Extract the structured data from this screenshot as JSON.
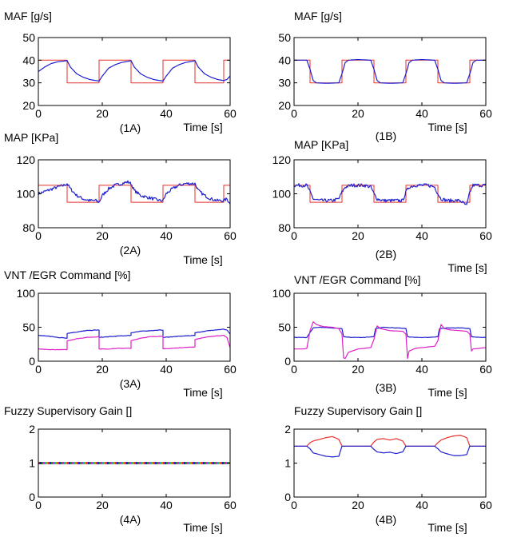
{
  "figure": {
    "panels": [
      {
        "id": "1A",
        "title": "MAF [g/s]",
        "label": "(1A)",
        "xlabel": "Time [s]"
      },
      {
        "id": "1B",
        "title": "MAF [g/s]",
        "label": "(1B)",
        "xlabel": "Time [s]"
      },
      {
        "id": "2A",
        "title": "MAP [KPa]",
        "label": "(2A)",
        "xlabel": "Time [s]"
      },
      {
        "id": "2B",
        "title": "MAP [KPa]",
        "label": "(2B)",
        "xlabel": "Time [s]"
      },
      {
        "id": "3A",
        "title": "VNT /EGR Command [%]",
        "label": "(3A)",
        "xlabel": "Time [s]"
      },
      {
        "id": "3B",
        "title": "VNT /EGR Command [%]",
        "label": "(3B)",
        "xlabel": "Time [s]"
      },
      {
        "id": "4A",
        "title": "Fuzzy Supervisory Gain []",
        "label": "(4A)",
        "xlabel": "Time [s]"
      },
      {
        "id": "4B",
        "title": "Fuzzy Supervisory Gain []",
        "label": "(4B)",
        "xlabel": "Time [s]"
      }
    ]
  },
  "colors": {
    "blue": "#1f1fcf",
    "red": "#e8302c",
    "magenta": "#e020c8",
    "axis": "#000000"
  },
  "chart_data": [
    {
      "id": "1A",
      "type": "line",
      "title": "MAF [g/s]",
      "xlabel": "Time [s]",
      "ylabel": "",
      "xlim": [
        0,
        60
      ],
      "ylim": [
        20,
        50
      ],
      "xticks": [
        0,
        20,
        40,
        60
      ],
      "yticks": [
        20,
        30,
        40,
        50
      ],
      "series": [
        {
          "color": "red",
          "step": true,
          "x": [
            0,
            9,
            9,
            19,
            19,
            29,
            29,
            39,
            39,
            49,
            49,
            58,
            58,
            60
          ],
          "y": [
            40,
            40,
            30,
            30,
            40,
            40,
            30,
            30,
            40,
            40,
            30,
            30,
            40,
            40
          ]
        },
        {
          "color": "blue",
          "x": [
            0,
            2,
            4,
            6,
            9,
            10,
            12,
            14,
            16,
            18,
            19,
            20,
            22,
            24,
            26,
            28,
            29,
            30,
            32,
            34,
            36,
            38,
            39,
            40,
            42,
            44,
            46,
            48,
            49,
            50,
            52,
            54,
            56,
            58,
            59,
            60
          ],
          "y": [
            35,
            37,
            38.5,
            39.3,
            39.8,
            37,
            34,
            32.5,
            31.5,
            31,
            30.8,
            33,
            36.5,
            38,
            39,
            39.5,
            39.8,
            37,
            34,
            32.5,
            31.5,
            31,
            30.8,
            33,
            36.5,
            38,
            39,
            39.5,
            39.8,
            37,
            34,
            32.5,
            31.5,
            31,
            31.5,
            33
          ]
        }
      ]
    },
    {
      "id": "1B",
      "type": "line",
      "title": "MAF [g/s]",
      "xlabel": "Time [s]",
      "ylabel": "",
      "xlim": [
        0,
        60
      ],
      "ylim": [
        20,
        50
      ],
      "xticks": [
        0,
        20,
        40,
        60
      ],
      "yticks": [
        20,
        30,
        40,
        50
      ],
      "series": [
        {
          "color": "red",
          "step": true,
          "x": [
            0,
            5,
            5,
            15,
            15,
            25,
            25,
            35,
            35,
            45,
            45,
            55,
            55,
            60
          ],
          "y": [
            40,
            40,
            30,
            30,
            40,
            40,
            30,
            30,
            40,
            40,
            30,
            30,
            40,
            40
          ]
        },
        {
          "color": "blue",
          "x": [
            0,
            4,
            5,
            6,
            7,
            10,
            14,
            15,
            16,
            17,
            20,
            24,
            25,
            26,
            27,
            30,
            34,
            35,
            36,
            37,
            40,
            44,
            45,
            46,
            47,
            50,
            54,
            55,
            56,
            57,
            60
          ],
          "y": [
            40,
            40,
            36,
            31,
            30,
            29.8,
            30,
            34,
            39,
            40,
            40.3,
            40,
            36,
            31,
            30,
            29.8,
            30,
            34,
            39,
            40,
            40.3,
            40,
            36,
            31,
            30,
            29.8,
            30,
            34,
            39,
            40,
            40
          ]
        }
      ]
    },
    {
      "id": "2A",
      "type": "line",
      "title": "MAP [KPa]",
      "xlabel": "Time [s]",
      "ylabel": "",
      "xlim": [
        0,
        60
      ],
      "ylim": [
        80,
        120
      ],
      "xticks": [
        0,
        20,
        40,
        60
      ],
      "yticks": [
        80,
        100,
        120
      ],
      "series": [
        {
          "color": "red",
          "step": true,
          "x": [
            0,
            9,
            9,
            19,
            19,
            29,
            29,
            39,
            39,
            49,
            49,
            58,
            58,
            60
          ],
          "y": [
            105,
            105,
            95,
            95,
            105,
            105,
            95,
            95,
            105,
            105,
            95,
            95,
            105,
            105
          ]
        },
        {
          "color": "blue",
          "noise": 0.9,
          "x": [
            0,
            3,
            6,
            8,
            9,
            10,
            12,
            14,
            16,
            18,
            19,
            20,
            22,
            24,
            26,
            28,
            29,
            30,
            32,
            34,
            36,
            38,
            39,
            40,
            42,
            44,
            46,
            48,
            49,
            50,
            52,
            54,
            56,
            58,
            59,
            60
          ],
          "y": [
            100,
            102,
            104,
            105,
            106,
            103,
            99,
            97,
            96,
            96,
            95,
            99,
            103,
            105,
            106,
            107,
            106,
            102,
            99,
            98,
            97,
            96,
            96,
            100,
            103,
            105,
            106,
            106,
            106,
            102,
            99,
            97,
            96,
            96,
            97,
            94
          ]
        }
      ]
    },
    {
      "id": "2B",
      "type": "line",
      "title": "MAP [KPa]",
      "xlabel": "Time [s]",
      "ylabel": "",
      "xlim": [
        0,
        60
      ],
      "ylim": [
        80,
        120
      ],
      "xticks": [
        0,
        20,
        40,
        60
      ],
      "yticks": [
        80,
        100,
        120
      ],
      "series": [
        {
          "color": "red",
          "step": true,
          "x": [
            0,
            5,
            5,
            15,
            15,
            25,
            25,
            35,
            35,
            45,
            45,
            55,
            55,
            60
          ],
          "y": [
            105,
            105,
            95,
            95,
            105,
            105,
            95,
            95,
            105,
            105,
            95,
            95,
            105,
            105
          ]
        },
        {
          "color": "blue",
          "noise": 1.0,
          "x": [
            0,
            4,
            5,
            6,
            8,
            12,
            14,
            15,
            16,
            18,
            22,
            24,
            25,
            26,
            28,
            32,
            34,
            35,
            36,
            38,
            42,
            44,
            45,
            46,
            48,
            52,
            54,
            55,
            56,
            58,
            60
          ],
          "y": [
            105,
            105,
            101,
            97,
            96,
            96,
            97,
            101,
            104,
            105,
            105,
            104,
            100,
            97,
            96,
            96,
            96,
            101,
            104,
            105,
            105,
            104,
            100,
            97,
            96,
            96,
            93,
            101,
            105,
            105,
            105
          ]
        }
      ]
    },
    {
      "id": "3A",
      "type": "line",
      "title": "VNT /EGR Command [%]",
      "xlabel": "Time [s]",
      "ylabel": "",
      "xlim": [
        0,
        60
      ],
      "ylim": [
        0,
        100
      ],
      "xticks": [
        0,
        20,
        40,
        60
      ],
      "yticks": [
        0,
        50,
        100
      ],
      "series": [
        {
          "color": "blue",
          "noise": 0.4,
          "x": [
            0,
            3,
            6,
            9,
            9,
            12,
            15,
            19,
            19,
            22,
            25,
            29,
            29,
            32,
            35,
            39,
            39,
            42,
            45,
            49,
            49,
            52,
            55,
            58,
            59,
            60
          ],
          "y": [
            38,
            37,
            35,
            34,
            41,
            43,
            45,
            46,
            35,
            36,
            37,
            38,
            42,
            44,
            45,
            46,
            35,
            36,
            37,
            38,
            42,
            44,
            46,
            47,
            46,
            40
          ]
        },
        {
          "color": "magenta",
          "noise": 0.3,
          "x": [
            0,
            3,
            6,
            9,
            9,
            12,
            15,
            19,
            19,
            22,
            25,
            29,
            29,
            32,
            35,
            39,
            39,
            42,
            45,
            49,
            49,
            52,
            55,
            58,
            59,
            60
          ],
          "y": [
            18,
            17,
            17,
            17,
            30,
            33,
            35,
            36,
            18,
            18,
            19,
            19,
            30,
            34,
            36,
            37,
            18,
            19,
            20,
            21,
            32,
            35,
            37,
            38,
            35,
            20
          ]
        }
      ]
    },
    {
      "id": "3B",
      "type": "line",
      "title": "VNT /EGR Command [%]",
      "xlabel": "Time [s]",
      "ylabel": "",
      "xlim": [
        0,
        60
      ],
      "ylim": [
        0,
        100
      ],
      "xticks": [
        0,
        20,
        40,
        60
      ],
      "yticks": [
        0,
        50,
        100
      ],
      "series": [
        {
          "color": "blue",
          "noise": 0.3,
          "x": [
            0,
            4,
            5,
            6,
            8,
            12,
            15,
            15.5,
            18,
            22,
            25,
            25.5,
            28,
            32,
            35,
            35.5,
            38,
            42,
            45,
            45.5,
            48,
            52,
            55,
            55.5,
            58,
            60
          ],
          "y": [
            35,
            35,
            42,
            49,
            50,
            49,
            48,
            36,
            35,
            35,
            36,
            48,
            50,
            49,
            48,
            36,
            35,
            35,
            36,
            48,
            49,
            49,
            48,
            36,
            35,
            35
          ]
        },
        {
          "color": "magenta",
          "x": [
            0,
            3,
            4,
            5,
            6,
            7,
            9,
            12,
            14,
            15,
            15.5,
            16,
            17,
            20,
            24,
            25,
            26,
            27,
            28,
            30,
            34,
            35,
            35.5,
            36,
            38,
            40,
            44,
            45,
            46,
            47,
            49,
            52,
            54,
            55,
            55.5,
            56,
            58,
            60
          ],
          "y": [
            18,
            18,
            19,
            45,
            58,
            54,
            51,
            50,
            48,
            40,
            5,
            4,
            13,
            18,
            20,
            32,
            52,
            48,
            47,
            45,
            44,
            40,
            4,
            15,
            19,
            20,
            22,
            30,
            54,
            48,
            46,
            45,
            44,
            40,
            15,
            18,
            19,
            20
          ]
        }
      ]
    },
    {
      "id": "4A",
      "type": "line",
      "title": "Fuzzy Supervisory Gain []",
      "xlabel": "Time [s]",
      "ylabel": "",
      "xlim": [
        0,
        60
      ],
      "ylim": [
        0,
        2
      ],
      "xticks": [
        0,
        20,
        40,
        60
      ],
      "yticks": [
        0,
        1,
        2
      ],
      "series": [
        {
          "color": "multicolor-dashed",
          "x": [
            0,
            60
          ],
          "y": [
            1,
            1
          ]
        }
      ]
    },
    {
      "id": "4B",
      "type": "line",
      "title": "Fuzzy Supervisory Gain []",
      "xlabel": "Time [s]",
      "ylabel": "",
      "xlim": [
        0,
        60
      ],
      "ylim": [
        0,
        2
      ],
      "xticks": [
        0,
        20,
        40,
        60
      ],
      "yticks": [
        0,
        1,
        2
      ],
      "series": [
        {
          "color": "red",
          "x": [
            0,
            4,
            5,
            6,
            8,
            10,
            12,
            14,
            15,
            16,
            24,
            25,
            26,
            28,
            30,
            32,
            34,
            35,
            36,
            44,
            45,
            46,
            48,
            50,
            52,
            54,
            55,
            56,
            60
          ],
          "y": [
            1.5,
            1.5,
            1.6,
            1.65,
            1.7,
            1.75,
            1.78,
            1.7,
            1.5,
            1.5,
            1.5,
            1.62,
            1.7,
            1.72,
            1.68,
            1.72,
            1.65,
            1.5,
            1.5,
            1.5,
            1.6,
            1.68,
            1.75,
            1.8,
            1.82,
            1.75,
            1.5,
            1.5,
            1.5
          ]
        },
        {
          "color": "blue",
          "x": [
            0,
            4,
            5,
            6,
            8,
            10,
            12,
            14,
            15,
            16,
            24,
            25,
            26,
            28,
            30,
            32,
            34,
            35,
            36,
            44,
            45,
            46,
            48,
            50,
            52,
            54,
            55,
            56,
            60
          ],
          "y": [
            1.5,
            1.5,
            1.42,
            1.3,
            1.25,
            1.2,
            1.18,
            1.2,
            1.5,
            1.5,
            1.5,
            1.4,
            1.33,
            1.3,
            1.32,
            1.28,
            1.33,
            1.5,
            1.5,
            1.5,
            1.42,
            1.33,
            1.27,
            1.22,
            1.22,
            1.25,
            1.5,
            1.5,
            1.5
          ]
        }
      ]
    }
  ]
}
